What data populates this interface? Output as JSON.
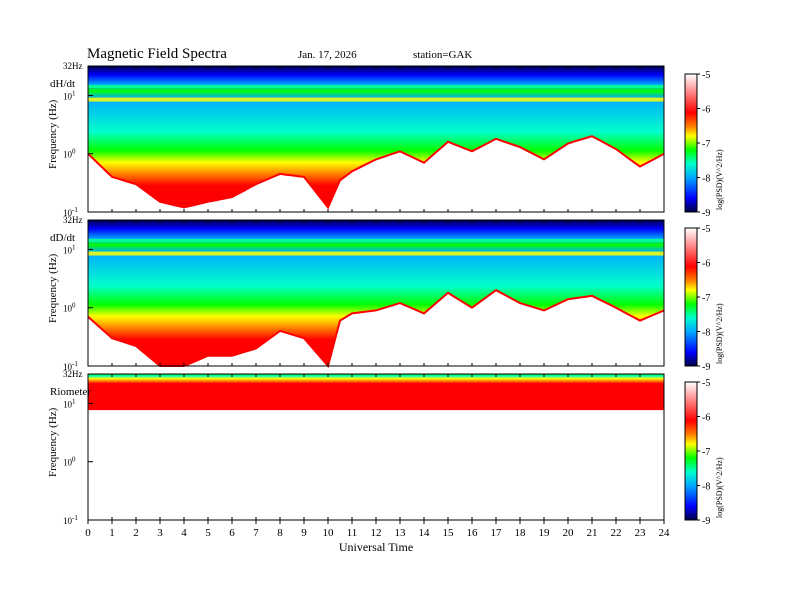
{
  "header": {
    "title": "Magnetic  Field  Spectra",
    "date": "Jan. 17, 2026",
    "station": "station=GAK"
  },
  "colors": {
    "spectrogram_scale": [
      "#00004a",
      "#0000ff",
      "#00aaff",
      "#00ffcc",
      "#00ff00",
      "#ffff00",
      "#ff7f00",
      "#ff0000",
      "#ffffff"
    ]
  },
  "chart_data": [
    {
      "type": "heatmap",
      "panel_label": "dH/dt",
      "ylabel": "Frequency  (Hz)",
      "y_scale": "log",
      "y_ticks": [
        {
          "label": "10",
          "sup": "-1",
          "value": 0.1
        },
        {
          "label": "10",
          "sup": "0",
          "value": 1
        },
        {
          "label": "10",
          "sup": "1",
          "value": 10
        },
        {
          "label": "32Hz",
          "sup": "",
          "value": 32
        }
      ],
      "x_range": [
        0,
        24
      ],
      "colorbar": {
        "label": "log(PSD)(V^2/Hz)",
        "range": [
          -9,
          -5
        ],
        "ticks": [
          "-5",
          "-6",
          "-7",
          "-8",
          "-9"
        ]
      },
      "red_band_cutoff_hz": [
        [
          0,
          1.0
        ],
        [
          1,
          0.4
        ],
        [
          2,
          0.3
        ],
        [
          3,
          0.15
        ],
        [
          4,
          0.12
        ],
        [
          5,
          0.15
        ],
        [
          6,
          0.18
        ],
        [
          7,
          0.3
        ],
        [
          8,
          0.45
        ],
        [
          9,
          0.4
        ],
        [
          10,
          0.12
        ],
        [
          10.5,
          0.35
        ],
        [
          11,
          0.5
        ],
        [
          12,
          0.8
        ],
        [
          13,
          1.1
        ],
        [
          14,
          0.7
        ],
        [
          15,
          1.6
        ],
        [
          16,
          1.1
        ],
        [
          17,
          1.8
        ],
        [
          18,
          1.3
        ],
        [
          19,
          0.8
        ],
        [
          20,
          1.5
        ],
        [
          21,
          2.0
        ],
        [
          22,
          1.2
        ],
        [
          23,
          0.6
        ],
        [
          24,
          1.0
        ]
      ]
    },
    {
      "type": "heatmap",
      "panel_label": "dD/dt",
      "ylabel": "Frequency  (Hz)",
      "y_scale": "log",
      "y_ticks": [
        {
          "label": "10",
          "sup": "-1",
          "value": 0.1
        },
        {
          "label": "10",
          "sup": "0",
          "value": 1
        },
        {
          "label": "10",
          "sup": "1",
          "value": 10
        },
        {
          "label": "32Hz",
          "sup": "",
          "value": 32
        }
      ],
      "x_range": [
        0,
        24
      ],
      "colorbar": {
        "label": "log(PSD)(V^2/Hz)",
        "range": [
          -9,
          -5
        ],
        "ticks": [
          "-5",
          "-6",
          "-7",
          "-8",
          "-9"
        ]
      },
      "red_band_cutoff_hz": [
        [
          0,
          0.7
        ],
        [
          1,
          0.3
        ],
        [
          2,
          0.22
        ],
        [
          3,
          0.1
        ],
        [
          4,
          0.1
        ],
        [
          5,
          0.15
        ],
        [
          6,
          0.15
        ],
        [
          7,
          0.2
        ],
        [
          8,
          0.4
        ],
        [
          9,
          0.3
        ],
        [
          10,
          0.1
        ],
        [
          10.5,
          0.6
        ],
        [
          11,
          0.8
        ],
        [
          12,
          0.9
        ],
        [
          13,
          1.2
        ],
        [
          14,
          0.8
        ],
        [
          15,
          1.8
        ],
        [
          16,
          1.0
        ],
        [
          17,
          2.0
        ],
        [
          18,
          1.2
        ],
        [
          19,
          0.9
        ],
        [
          20,
          1.4
        ],
        [
          21,
          1.6
        ],
        [
          22,
          1.0
        ],
        [
          23,
          0.6
        ],
        [
          24,
          0.9
        ]
      ]
    },
    {
      "type": "heatmap",
      "panel_label": "Riometer",
      "ylabel": "Frequency  (Hz)",
      "y_scale": "log",
      "y_ticks": [
        {
          "label": "10",
          "sup": "-1",
          "value": 0.1
        },
        {
          "label": "10",
          "sup": "0",
          "value": 1
        },
        {
          "label": "10",
          "sup": "1",
          "value": 10
        },
        {
          "label": "32Hz",
          "sup": "",
          "value": 32
        }
      ],
      "x_range": [
        0,
        24
      ],
      "x_ticks": [
        "0",
        "1",
        "2",
        "3",
        "4",
        "5",
        "6",
        "7",
        "8",
        "9",
        "10",
        "11",
        "12",
        "13",
        "14",
        "15",
        "16",
        "17",
        "18",
        "19",
        "20",
        "21",
        "22",
        "23",
        "24"
      ],
      "xlabel": "Universal  Time",
      "colorbar": {
        "label": "log(PSD)(V^2/Hz)",
        "range": [
          -9,
          -5
        ],
        "ticks": [
          "-5",
          "-6",
          "-7",
          "-8",
          "-9"
        ]
      },
      "red_band_cutoff_hz": [
        [
          0,
          8
        ],
        [
          24,
          8
        ]
      ]
    }
  ]
}
